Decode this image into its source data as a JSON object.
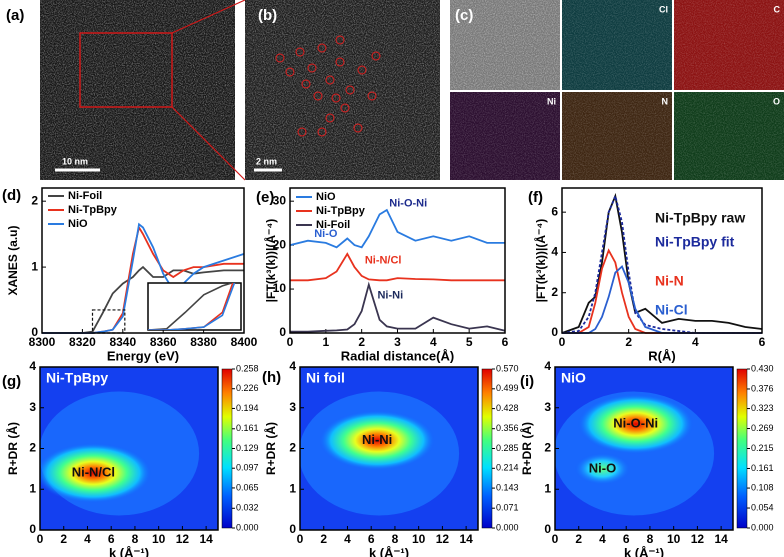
{
  "images": [
    {
      "panel_label": "(a)",
      "scale_bar": "10 nm"
    },
    {
      "panel_label": "(b)",
      "scale_bar": "2 nm"
    },
    {
      "panel_label": "(c)",
      "maps": [
        "Cl",
        "C",
        "Ni",
        "N",
        "O"
      ]
    }
  ],
  "chart_data": [
    {
      "type": "line",
      "panel_label": "(d)",
      "xlabel": "Energy (eV)",
      "ylabel": "XANES (a.u)",
      "x": [
        8300,
        8320,
        8325,
        8330,
        8335,
        8340,
        8345,
        8348,
        8350,
        8355,
        8360,
        8365,
        8370,
        8375,
        8380,
        8390,
        8400
      ],
      "series": [
        {
          "name": "Ni-Foil",
          "color": "#444444",
          "values": [
            0,
            0,
            0.02,
            0.3,
            0.6,
            0.75,
            0.85,
            0.95,
            1.0,
            0.85,
            0.85,
            0.95,
            0.95,
            0.9,
            0.92,
            0.95,
            0.95
          ]
        },
        {
          "name": "Ni-TpBpy",
          "color": "#e8321e",
          "values": [
            0,
            0,
            0,
            0.02,
            0.05,
            0.3,
            1.2,
            1.6,
            1.5,
            1.2,
            0.95,
            0.85,
            0.95,
            1.0,
            1.0,
            1.05,
            1.05
          ]
        },
        {
          "name": "NiO",
          "color": "#2a7be0",
          "values": [
            0,
            0,
            0,
            0.02,
            0.05,
            0.25,
            1.1,
            1.65,
            1.6,
            1.3,
            0.9,
            0.65,
            0.75,
            0.9,
            1.0,
            1.1,
            1.2
          ]
        }
      ],
      "xlim": [
        8300,
        8400
      ],
      "xticks": [
        8300,
        8320,
        8340,
        8360,
        8380,
        8400
      ],
      "ylim": [
        0,
        2.2
      ],
      "yticks": [
        0,
        1,
        2
      ]
    },
    {
      "type": "line",
      "panel_label": "(e)",
      "xlabel": "Radial distance(Å)",
      "ylabel": "|FT(k³(k))|(Å⁻⁴)",
      "x": [
        0,
        0.5,
        1,
        1.3,
        1.6,
        1.8,
        2,
        2.2,
        2.5,
        2.7,
        3,
        3.5,
        4,
        4.5,
        5,
        5.5,
        6
      ],
      "series": [
        {
          "name": "NiO",
          "color": "#2a7be0",
          "values": [
            20,
            21,
            20.5,
            19.5,
            21.5,
            20,
            19.5,
            22,
            27,
            28,
            23,
            21,
            22,
            21,
            22,
            20.5,
            20.5
          ]
        },
        {
          "name": "Ni-TpBpy",
          "color": "#e8321e",
          "values": [
            12,
            12,
            12.5,
            14,
            18,
            15,
            13,
            12.2,
            12,
            12,
            12.5,
            12.3,
            12.2,
            12,
            12,
            12,
            12
          ]
        },
        {
          "name": "Ni-Foil",
          "color": "#3a3550",
          "values": [
            0.3,
            0.3,
            0.5,
            0.6,
            0.8,
            2,
            5,
            11,
            3,
            1.5,
            1,
            1,
            3.5,
            2,
            1,
            1.5,
            0.5
          ]
        }
      ],
      "annotations": [
        {
          "text": "Ni-O",
          "x": 1.0,
          "y": 22.5,
          "color": "#2a5fd0"
        },
        {
          "text": "Ni-O-Ni",
          "x": 3.3,
          "y": 29.5,
          "color": "#1c2a8c"
        },
        {
          "text": "Ni-N/Cl",
          "x": 2.6,
          "y": 16.5,
          "color": "#e8321e"
        },
        {
          "text": "Ni-Ni",
          "x": 2.8,
          "y": 8.5,
          "color": "#1c2a5c"
        }
      ],
      "xlim": [
        0,
        6
      ],
      "xticks": [
        0,
        1,
        2,
        3,
        4,
        5,
        6
      ],
      "ylim": [
        0,
        33
      ],
      "yticks": [
        0,
        10,
        20,
        30
      ]
    },
    {
      "type": "line",
      "panel_label": "(f)",
      "xlabel": "R(Å)",
      "ylabel": "|FT(k³(k))|(Å⁻⁴)",
      "x": [
        0,
        0.5,
        0.8,
        1,
        1.2,
        1.4,
        1.6,
        1.8,
        2,
        2.2,
        2.5,
        3,
        3.5,
        4,
        4.5,
        5,
        5.5,
        6
      ],
      "series": [
        {
          "name": "Ni-TpBpy raw",
          "color": "#111111",
          "values": [
            0,
            0.3,
            1.5,
            1.8,
            3.5,
            6.0,
            6.8,
            5.0,
            2.5,
            1.0,
            1.2,
            0.5,
            0.7,
            0.6,
            0.6,
            0.5,
            0.3,
            0.2
          ]
        },
        {
          "name": "Ni-TpBpy fit",
          "color": "#1c2a9c",
          "values": [
            0,
            0.1,
            0.8,
            2,
            4,
            6,
            6.8,
            5.5,
            3,
            1,
            0.4,
            0.2,
            0.1,
            0,
            0,
            0,
            0,
            0
          ]
        },
        {
          "name": "Ni-N",
          "color": "#e8321e",
          "values": [
            0,
            0,
            0.3,
            1.5,
            3.2,
            4.1,
            3.5,
            2.0,
            0.8,
            0.2,
            0,
            0,
            0,
            0,
            0,
            0,
            0,
            0
          ]
        },
        {
          "name": "Ni-Cl",
          "color": "#2a5fd0",
          "values": [
            0,
            0,
            0,
            0.2,
            0.8,
            1.8,
            3.0,
            3.3,
            2.5,
            1.2,
            0.3,
            0,
            0,
            0,
            0,
            0,
            0,
            0
          ]
        }
      ],
      "xlim": [
        0,
        6
      ],
      "xticks": [
        0,
        2,
        4,
        6
      ],
      "ylim": [
        0,
        7.2
      ],
      "yticks": [
        0,
        2,
        4,
        6
      ]
    },
    {
      "type": "contour",
      "panel_label": "(g)",
      "title": "Ni-TpBpy",
      "xlabel": "k (Å⁻¹)",
      "ylabel": "R+DR (Å)",
      "annotations": [
        {
          "text": "Ni-N/Cl",
          "x": 4.5,
          "y": 1.4
        }
      ],
      "xlim": [
        0,
        15
      ],
      "xticks": [
        0,
        2,
        4,
        6,
        8,
        10,
        12,
        14
      ],
      "ylim": [
        0,
        4
      ],
      "yticks": [
        0,
        1,
        2,
        3,
        4
      ],
      "zlim": [
        0,
        0.258
      ],
      "zticks": [
        {
          "value": 0,
          "label": "0.000"
        },
        0.032,
        0.065,
        0.097,
        0.129,
        0.161,
        0.194,
        0.226,
        0.258
      ]
    },
    {
      "type": "contour",
      "panel_label": "(h)",
      "title": "Ni foil",
      "xlabel": "k (Å⁻¹)",
      "ylabel": "R+DR (Å)",
      "annotations": [
        {
          "text": "Ni-Ni",
          "x": 6.5,
          "y": 2.2
        }
      ],
      "xlim": [
        0,
        15
      ],
      "xticks": [
        0,
        2,
        4,
        6,
        8,
        10,
        12,
        14
      ],
      "ylim": [
        0,
        4
      ],
      "yticks": [
        0,
        1,
        2,
        3,
        4
      ],
      "zlim": [
        0,
        0.57
      ],
      "zticks": [
        {
          "value": 0,
          "label": "0.000"
        },
        0.071,
        0.143,
        0.214,
        0.285,
        0.356,
        0.428,
        0.499,
        {
          "value": 0.57,
          "label": "0.570"
        }
      ]
    },
    {
      "type": "contour",
      "panel_label": "(i)",
      "title": "NiO",
      "xlabel": "k (Å⁻¹)",
      "ylabel": "R+DR (Å)",
      "annotations": [
        {
          "text": "Ni-O-Ni",
          "x": 6.8,
          "y": 2.6
        },
        {
          "text": "Ni-O",
          "x": 4,
          "y": 1.5
        }
      ],
      "xlim": [
        0,
        15
      ],
      "xticks": [
        0,
        2,
        4,
        6,
        8,
        10,
        12,
        14
      ],
      "ylim": [
        0,
        4
      ],
      "yticks": [
        0,
        1,
        2,
        3,
        4
      ],
      "zlim": [
        0,
        0.43
      ],
      "zticks": [
        {
          "value": 0,
          "label": "0.000"
        },
        0.054,
        0.108,
        0.161,
        0.215,
        0.269,
        0.323,
        0.376,
        {
          "value": 0.43,
          "label": "0.430"
        }
      ]
    }
  ]
}
